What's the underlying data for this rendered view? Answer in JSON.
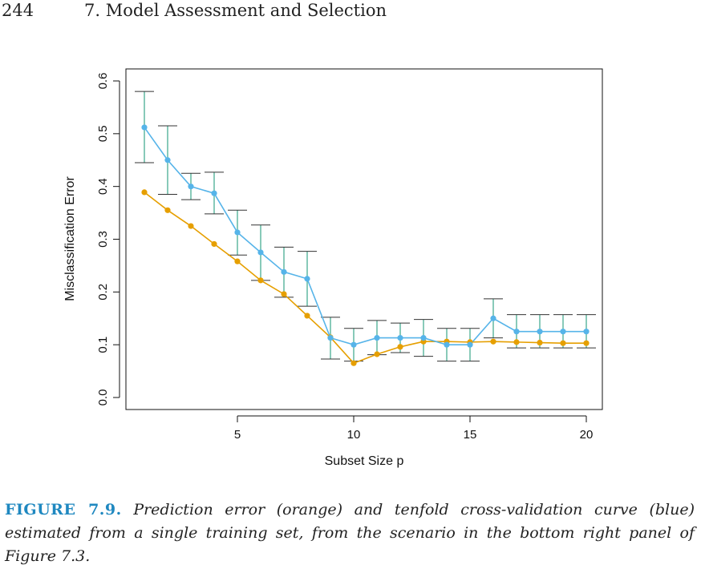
{
  "header": {
    "page_number": "244",
    "running_head": "7. Model Assessment and Selection"
  },
  "caption": {
    "label": "FIGURE 7.9.",
    "text": "Prediction error (orange) and tenfold cross-validation curve (blue) estimated from a single training set, from the scenario in the bottom right panel of Figure 7.3."
  },
  "chart_data": {
    "type": "line",
    "title": "",
    "xlabel": "Subset Size p",
    "ylabel": "Misclassification Error",
    "xlim": [
      1,
      20
    ],
    "ylim": [
      0.0,
      0.6
    ],
    "xticks": [
      5,
      10,
      15,
      20
    ],
    "yticks": [
      0.0,
      0.1,
      0.2,
      0.3,
      0.4,
      0.5,
      0.6
    ],
    "ytick_labels": [
      "0.0",
      "0.1",
      "0.2",
      "0.3",
      "0.4",
      "0.5",
      "0.6"
    ],
    "xtick_labels": [
      "5",
      "10",
      "15",
      "20"
    ],
    "x": [
      1,
      2,
      3,
      4,
      5,
      6,
      7,
      8,
      9,
      10,
      11,
      12,
      13,
      14,
      15,
      16,
      17,
      18,
      19,
      20
    ],
    "series": [
      {
        "color": "#e69f00",
        "values": [
          0.389,
          0.355,
          0.325,
          0.291,
          0.258,
          0.222,
          0.196,
          0.155,
          0.114,
          0.065,
          0.082,
          0.096,
          0.106,
          0.106,
          0.105,
          0.106,
          0.105,
          0.104,
          0.103,
          0.103
        ]
      },
      {
        "color": "#56b4e9",
        "values": [
          0.512,
          0.45,
          0.4,
          0.387,
          0.313,
          0.275,
          0.238,
          0.225,
          0.113,
          0.1,
          0.113,
          0.113,
          0.113,
          0.1,
          0.1,
          0.15,
          0.125,
          0.125,
          0.125,
          0.125
        ],
        "error_low": [
          0.445,
          0.385,
          0.375,
          0.348,
          0.27,
          0.222,
          0.19,
          0.173,
          0.073,
          0.069,
          0.081,
          0.085,
          0.078,
          0.069,
          0.069,
          0.113,
          0.094,
          0.094,
          0.094,
          0.094
        ],
        "error_high": [
          0.58,
          0.515,
          0.425,
          0.427,
          0.355,
          0.327,
          0.285,
          0.277,
          0.152,
          0.131,
          0.146,
          0.141,
          0.148,
          0.131,
          0.131,
          0.187,
          0.157,
          0.157,
          0.157,
          0.157
        ],
        "error_color": "#3aa68a"
      }
    ],
    "grid": false,
    "legend": "none"
  }
}
